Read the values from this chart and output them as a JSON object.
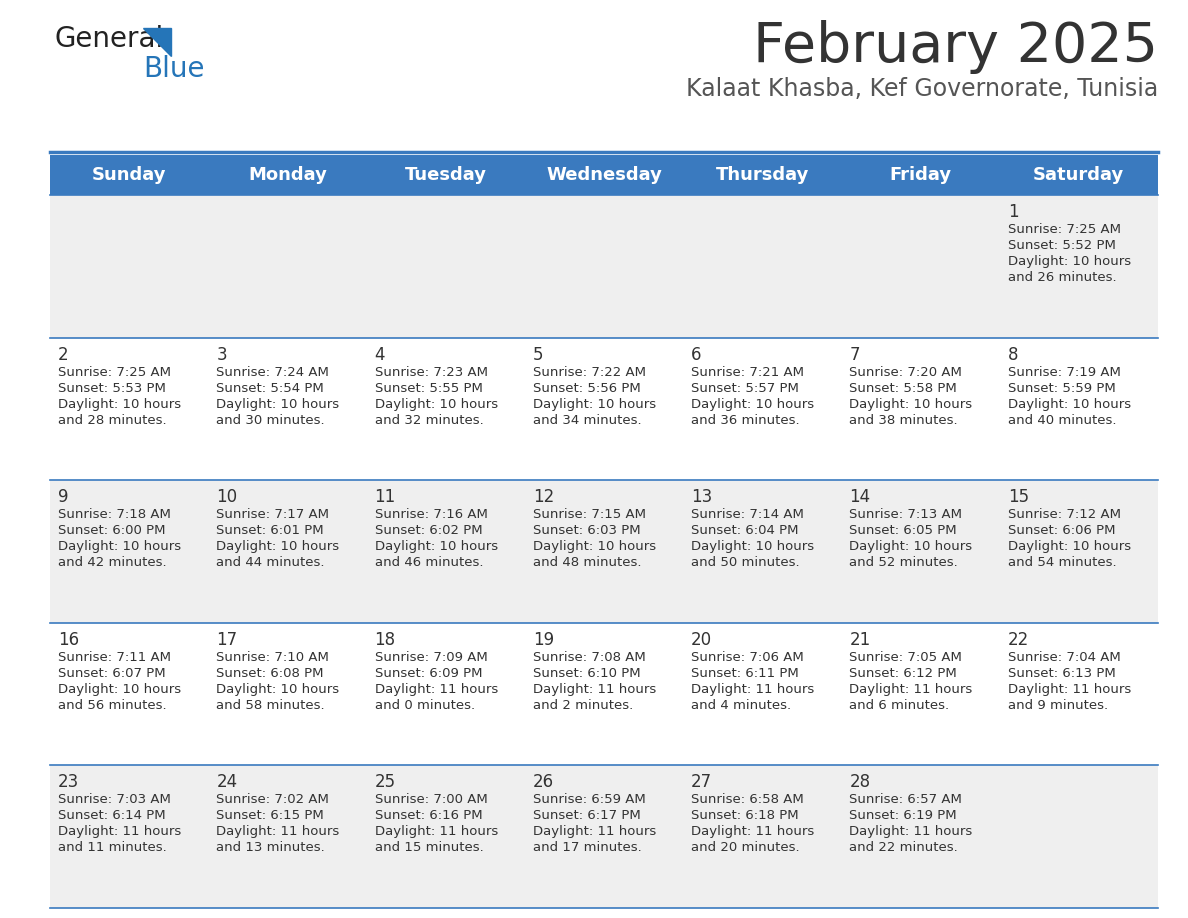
{
  "title": "February 2025",
  "subtitle": "Kalaat Khasba, Kef Governorate, Tunisia",
  "days_of_week": [
    "Sunday",
    "Monday",
    "Tuesday",
    "Wednesday",
    "Thursday",
    "Friday",
    "Saturday"
  ],
  "header_bg": "#3a7abf",
  "header_text": "#ffffff",
  "row_bg_odd": "#efefef",
  "row_bg_even": "#ffffff",
  "separator_color": "#3a7abf",
  "title_color": "#333333",
  "subtitle_color": "#555555",
  "cell_text_color": "#333333",
  "day_num_color": "#333333",
  "calendar": [
    [
      {
        "day": null,
        "data": null
      },
      {
        "day": null,
        "data": null
      },
      {
        "day": null,
        "data": null
      },
      {
        "day": null,
        "data": null
      },
      {
        "day": null,
        "data": null
      },
      {
        "day": null,
        "data": null
      },
      {
        "day": 1,
        "data": {
          "sunrise": "7:25 AM",
          "sunset": "5:52 PM",
          "daylight_line1": "Daylight: 10 hours",
          "daylight_line2": "and 26 minutes."
        }
      }
    ],
    [
      {
        "day": 2,
        "data": {
          "sunrise": "7:25 AM",
          "sunset": "5:53 PM",
          "daylight_line1": "Daylight: 10 hours",
          "daylight_line2": "and 28 minutes."
        }
      },
      {
        "day": 3,
        "data": {
          "sunrise": "7:24 AM",
          "sunset": "5:54 PM",
          "daylight_line1": "Daylight: 10 hours",
          "daylight_line2": "and 30 minutes."
        }
      },
      {
        "day": 4,
        "data": {
          "sunrise": "7:23 AM",
          "sunset": "5:55 PM",
          "daylight_line1": "Daylight: 10 hours",
          "daylight_line2": "and 32 minutes."
        }
      },
      {
        "day": 5,
        "data": {
          "sunrise": "7:22 AM",
          "sunset": "5:56 PM",
          "daylight_line1": "Daylight: 10 hours",
          "daylight_line2": "and 34 minutes."
        }
      },
      {
        "day": 6,
        "data": {
          "sunrise": "7:21 AM",
          "sunset": "5:57 PM",
          "daylight_line1": "Daylight: 10 hours",
          "daylight_line2": "and 36 minutes."
        }
      },
      {
        "day": 7,
        "data": {
          "sunrise": "7:20 AM",
          "sunset": "5:58 PM",
          "daylight_line1": "Daylight: 10 hours",
          "daylight_line2": "and 38 minutes."
        }
      },
      {
        "day": 8,
        "data": {
          "sunrise": "7:19 AM",
          "sunset": "5:59 PM",
          "daylight_line1": "Daylight: 10 hours",
          "daylight_line2": "and 40 minutes."
        }
      }
    ],
    [
      {
        "day": 9,
        "data": {
          "sunrise": "7:18 AM",
          "sunset": "6:00 PM",
          "daylight_line1": "Daylight: 10 hours",
          "daylight_line2": "and 42 minutes."
        }
      },
      {
        "day": 10,
        "data": {
          "sunrise": "7:17 AM",
          "sunset": "6:01 PM",
          "daylight_line1": "Daylight: 10 hours",
          "daylight_line2": "and 44 minutes."
        }
      },
      {
        "day": 11,
        "data": {
          "sunrise": "7:16 AM",
          "sunset": "6:02 PM",
          "daylight_line1": "Daylight: 10 hours",
          "daylight_line2": "and 46 minutes."
        }
      },
      {
        "day": 12,
        "data": {
          "sunrise": "7:15 AM",
          "sunset": "6:03 PM",
          "daylight_line1": "Daylight: 10 hours",
          "daylight_line2": "and 48 minutes."
        }
      },
      {
        "day": 13,
        "data": {
          "sunrise": "7:14 AM",
          "sunset": "6:04 PM",
          "daylight_line1": "Daylight: 10 hours",
          "daylight_line2": "and 50 minutes."
        }
      },
      {
        "day": 14,
        "data": {
          "sunrise": "7:13 AM",
          "sunset": "6:05 PM",
          "daylight_line1": "Daylight: 10 hours",
          "daylight_line2": "and 52 minutes."
        }
      },
      {
        "day": 15,
        "data": {
          "sunrise": "7:12 AM",
          "sunset": "6:06 PM",
          "daylight_line1": "Daylight: 10 hours",
          "daylight_line2": "and 54 minutes."
        }
      }
    ],
    [
      {
        "day": 16,
        "data": {
          "sunrise": "7:11 AM",
          "sunset": "6:07 PM",
          "daylight_line1": "Daylight: 10 hours",
          "daylight_line2": "and 56 minutes."
        }
      },
      {
        "day": 17,
        "data": {
          "sunrise": "7:10 AM",
          "sunset": "6:08 PM",
          "daylight_line1": "Daylight: 10 hours",
          "daylight_line2": "and 58 minutes."
        }
      },
      {
        "day": 18,
        "data": {
          "sunrise": "7:09 AM",
          "sunset": "6:09 PM",
          "daylight_line1": "Daylight: 11 hours",
          "daylight_line2": "and 0 minutes."
        }
      },
      {
        "day": 19,
        "data": {
          "sunrise": "7:08 AM",
          "sunset": "6:10 PM",
          "daylight_line1": "Daylight: 11 hours",
          "daylight_line2": "and 2 minutes."
        }
      },
      {
        "day": 20,
        "data": {
          "sunrise": "7:06 AM",
          "sunset": "6:11 PM",
          "daylight_line1": "Daylight: 11 hours",
          "daylight_line2": "and 4 minutes."
        }
      },
      {
        "day": 21,
        "data": {
          "sunrise": "7:05 AM",
          "sunset": "6:12 PM",
          "daylight_line1": "Daylight: 11 hours",
          "daylight_line2": "and 6 minutes."
        }
      },
      {
        "day": 22,
        "data": {
          "sunrise": "7:04 AM",
          "sunset": "6:13 PM",
          "daylight_line1": "Daylight: 11 hours",
          "daylight_line2": "and 9 minutes."
        }
      }
    ],
    [
      {
        "day": 23,
        "data": {
          "sunrise": "7:03 AM",
          "sunset": "6:14 PM",
          "daylight_line1": "Daylight: 11 hours",
          "daylight_line2": "and 11 minutes."
        }
      },
      {
        "day": 24,
        "data": {
          "sunrise": "7:02 AM",
          "sunset": "6:15 PM",
          "daylight_line1": "Daylight: 11 hours",
          "daylight_line2": "and 13 minutes."
        }
      },
      {
        "day": 25,
        "data": {
          "sunrise": "7:00 AM",
          "sunset": "6:16 PM",
          "daylight_line1": "Daylight: 11 hours",
          "daylight_line2": "and 15 minutes."
        }
      },
      {
        "day": 26,
        "data": {
          "sunrise": "6:59 AM",
          "sunset": "6:17 PM",
          "daylight_line1": "Daylight: 11 hours",
          "daylight_line2": "and 17 minutes."
        }
      },
      {
        "day": 27,
        "data": {
          "sunrise": "6:58 AM",
          "sunset": "6:18 PM",
          "daylight_line1": "Daylight: 11 hours",
          "daylight_line2": "and 20 minutes."
        }
      },
      {
        "day": 28,
        "data": {
          "sunrise": "6:57 AM",
          "sunset": "6:19 PM",
          "daylight_line1": "Daylight: 11 hours",
          "daylight_line2": "and 22 minutes."
        }
      },
      {
        "day": null,
        "data": null
      }
    ]
  ],
  "logo_general_color": "#222222",
  "logo_blue_color": "#2575b8",
  "logo_triangle_color": "#2575b8"
}
